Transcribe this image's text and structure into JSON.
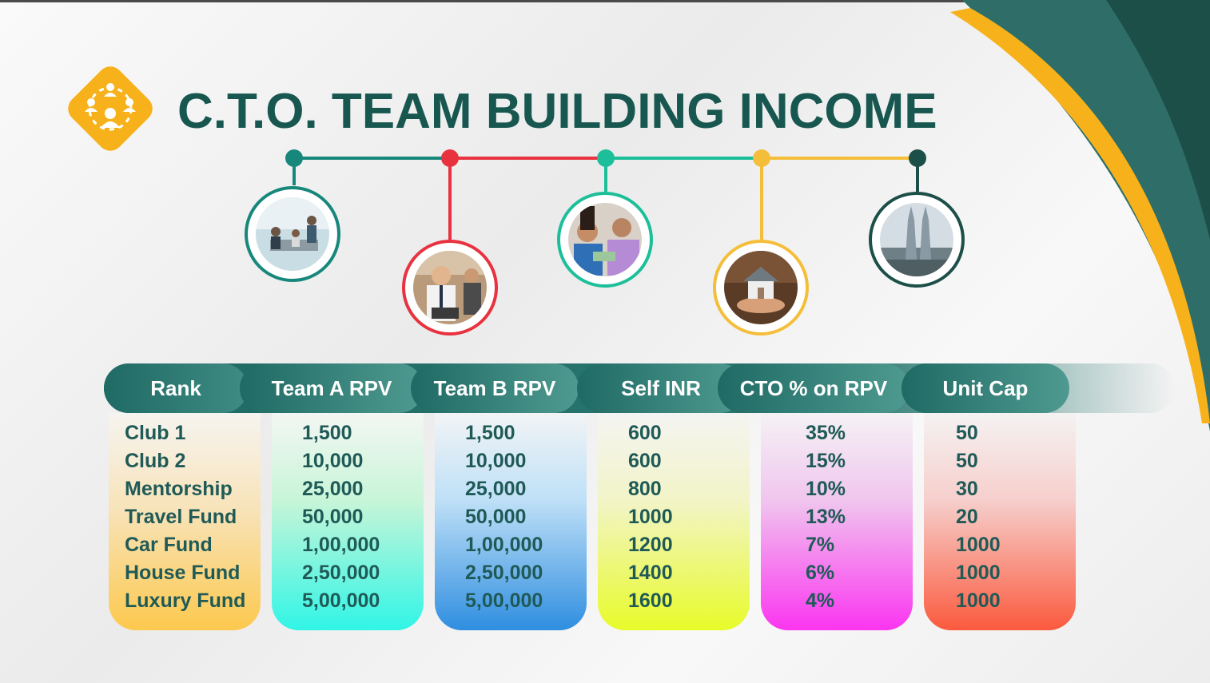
{
  "title": "C.T.O. TEAM BUILDING INCOME",
  "colors": {
    "teal_dark": "#17574f",
    "accent_yellow": "#f7b21b",
    "red": "#e8323f",
    "green_teal": "#1dbf9a",
    "yellow": "#f5be3a",
    "dark_green": "#1d4f49"
  },
  "icons": [
    "team-network-icon"
  ],
  "timeline_photos": [
    {
      "label": "team-meeting-photo"
    },
    {
      "label": "businessman-laptop-photo"
    },
    {
      "label": "couple-money-photo"
    },
    {
      "label": "house-in-hand-photo"
    },
    {
      "label": "twin-towers-photo"
    }
  ],
  "table": {
    "headers": [
      "Rank",
      "Team A RPV",
      "Team B RPV",
      "Self INR",
      "CTO % on RPV",
      "Unit Cap"
    ],
    "columns": [
      [
        "Club 1",
        "Club 2",
        "Mentorship",
        "Travel Fund",
        "Car Fund",
        "House Fund",
        "Luxury Fund"
      ],
      [
        "1,500",
        "10,000",
        "25,000",
        "50,000",
        "1,00,000",
        "2,50,000",
        "5,00,000"
      ],
      [
        "1,500",
        "10,000",
        "25,000",
        "50,000",
        "1,00,000",
        "2,50,000",
        "5,00,000"
      ],
      [
        "600",
        "600",
        "800",
        "1000",
        "1200",
        "1400",
        "1600"
      ],
      [
        "35%",
        "15%",
        "10%",
        "13%",
        "7%",
        "6%",
        "4%"
      ],
      [
        "50",
        "50",
        "30",
        "20",
        "1000",
        "1000",
        "1000"
      ]
    ]
  }
}
